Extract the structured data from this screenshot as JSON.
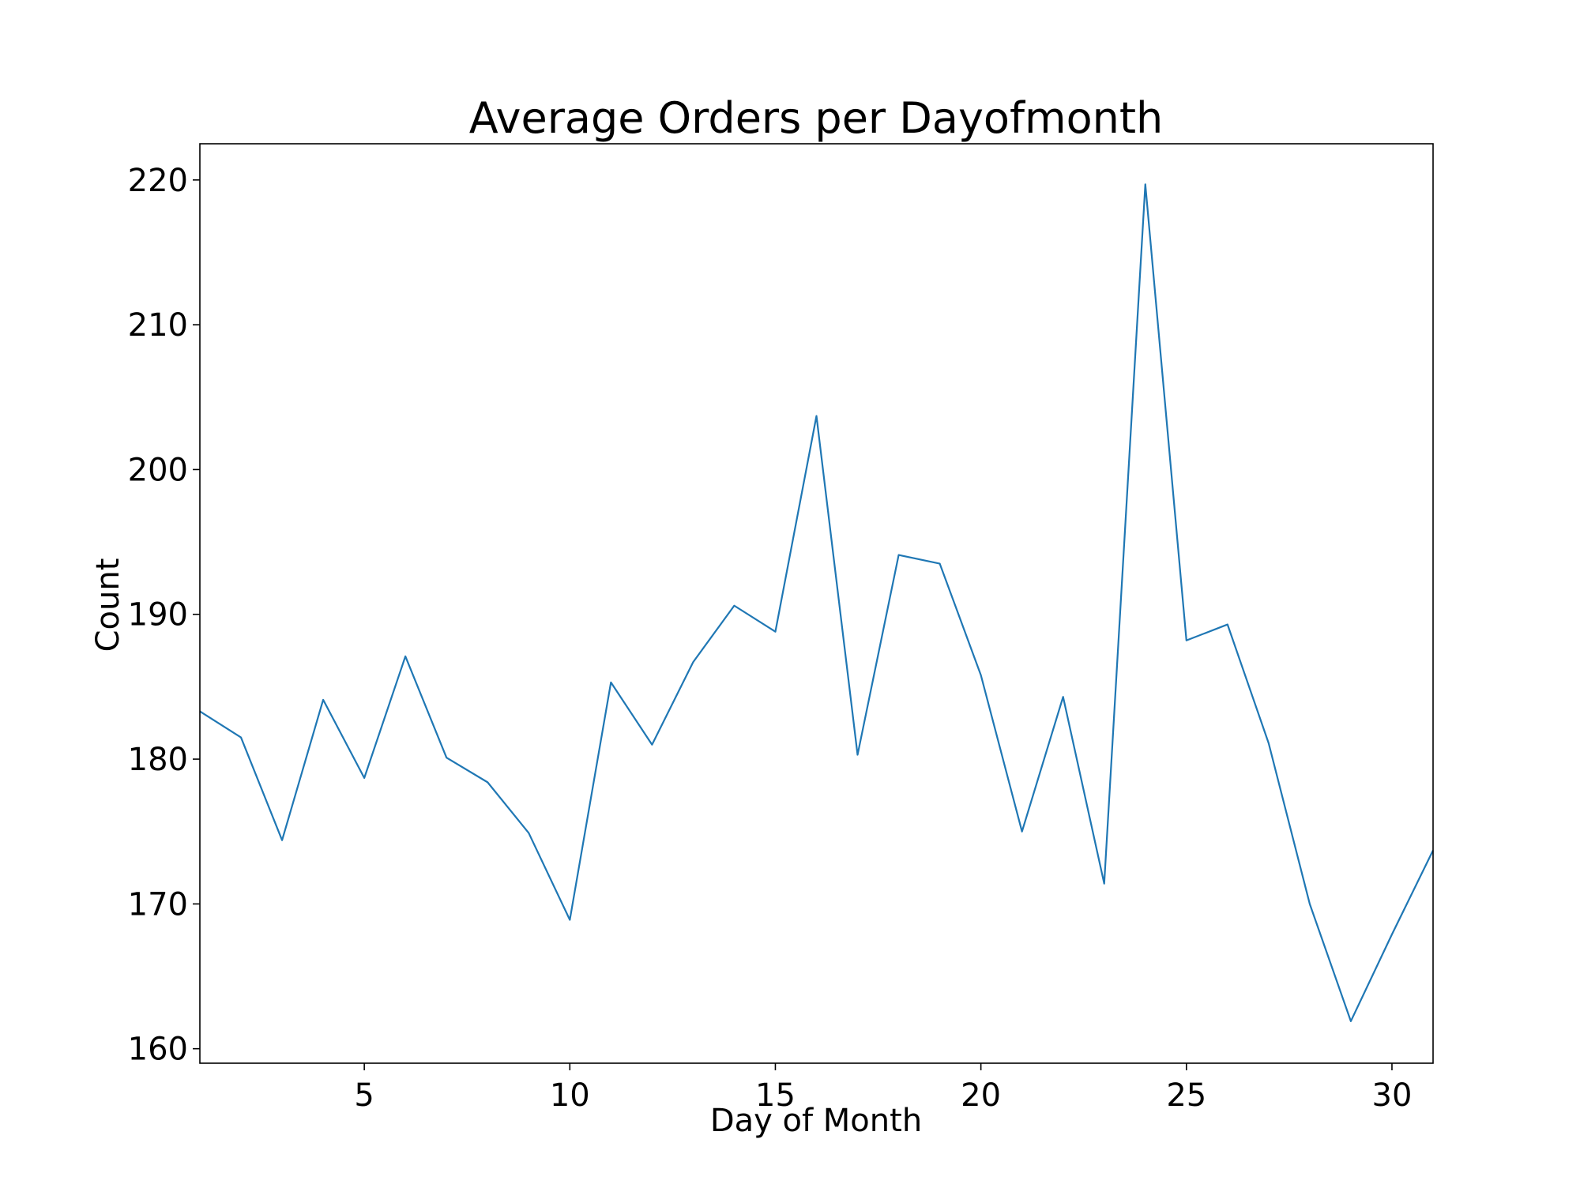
{
  "chart_data": {
    "type": "line",
    "title": "Average Orders per Dayofmonth",
    "xlabel": "Day of Month",
    "ylabel": "Count",
    "xlim": [
      1,
      31
    ],
    "ylim": [
      159,
      222.5
    ],
    "xticks": [
      5,
      10,
      15,
      20,
      25,
      30
    ],
    "yticks": [
      160,
      170,
      180,
      190,
      200,
      210,
      220
    ],
    "grid": false,
    "legend": "none",
    "series": [
      {
        "color": "#1f77b4",
        "x": [
          1,
          2,
          3,
          4,
          5,
          6,
          7,
          8,
          9,
          10,
          11,
          12,
          13,
          14,
          15,
          16,
          17,
          18,
          19,
          20,
          21,
          22,
          23,
          24,
          25,
          26,
          27,
          28,
          29,
          30,
          31
        ],
        "values": [
          183.3,
          181.5,
          174.4,
          184.1,
          178.7,
          187.1,
          180.1,
          178.4,
          174.9,
          168.9,
          185.3,
          181.0,
          186.7,
          190.6,
          188.8,
          203.7,
          180.3,
          194.1,
          193.5,
          185.8,
          175.0,
          184.3,
          171.4,
          219.7,
          188.2,
          189.3,
          181.1,
          170.0,
          161.9,
          167.9,
          173.7
        ]
      }
    ]
  }
}
